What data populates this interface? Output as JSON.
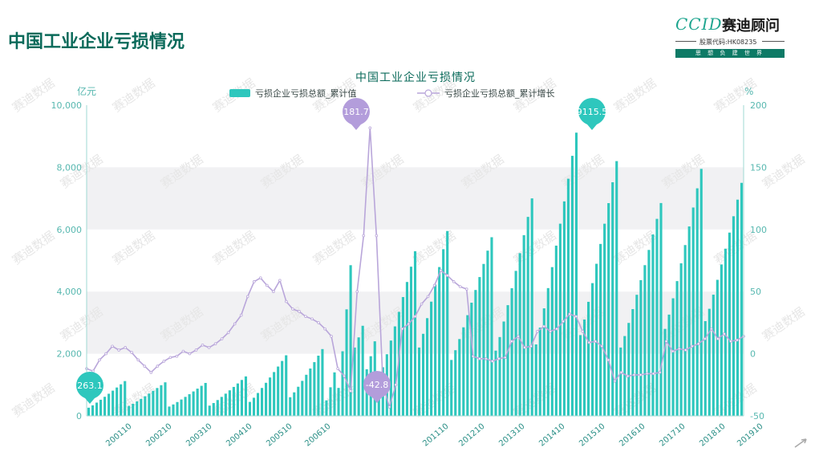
{
  "page": {
    "title": "中国工业企业亏损情况"
  },
  "logo": {
    "mark": "CCID",
    "name": "赛迪顾问",
    "stock_code": "股票代码:HK08235",
    "slogan": "思 想 负 建 世 界"
  },
  "watermark": "赛迪数据",
  "colors": {
    "bar": "#2ec7bd",
    "line": "#b9a6da",
    "marker_teal": "#2ec7bd",
    "marker_purple": "#b39ddb",
    "axis_text": "#58b8b0",
    "title": "#0a6a5a"
  },
  "chart_data": {
    "type": "bar+line",
    "title": "中国工业企业亏损情况",
    "y_left_label": "亿元",
    "y_right_label": "%",
    "y_left_ticks": [
      "0",
      "2,000",
      "4,000",
      "6,000",
      "8,000",
      "10,000"
    ],
    "y_right_ticks": [
      "-50",
      "0",
      "50",
      "100",
      "150",
      "200"
    ],
    "y_left_range": [
      0,
      10000
    ],
    "y_right_range": [
      -50,
      200
    ],
    "x_tick_labels": [
      "200110",
      "200210",
      "200310",
      "200410",
      "200510",
      "200610",
      "201110",
      "201210",
      "201310",
      "201410",
      "201510",
      "201610",
      "201710",
      "201810",
      "201910"
    ],
    "legend": [
      {
        "name": "亏损企业亏损总额_累计值",
        "kind": "bar"
      },
      {
        "name": "亏损企业亏损总额_累计增长",
        "kind": "line"
      }
    ],
    "annotations": [
      {
        "label": "263.1",
        "series": "bar",
        "kind": "min"
      },
      {
        "label": "9115.5",
        "series": "bar",
        "kind": "max"
      },
      {
        "label": "181.7",
        "series": "line",
        "kind": "max"
      },
      {
        "label": "-42.8",
        "series": "line",
        "kind": "min"
      }
    ],
    "bar_years": [
      {
        "year": 2001,
        "months": 10,
        "start": 263,
        "end": 1120
      },
      {
        "year": 2002,
        "months": 10,
        "start": 320,
        "end": 1080
      },
      {
        "year": 2003,
        "months": 10,
        "start": 300,
        "end": 1060
      },
      {
        "year": 2004,
        "months": 10,
        "start": 330,
        "end": 1270
      },
      {
        "year": 2005,
        "months": 10,
        "start": 450,
        "end": 1950
      },
      {
        "year": 2006,
        "months": 9,
        "start": 600,
        "end": 2150
      },
      {
        "year": 2007,
        "months": 3,
        "start": 500,
        "end": 1400
      },
      {
        "year": 2008,
        "months": 4,
        "start": 900,
        "end": 4850
      },
      {
        "year": 2009,
        "months": 3,
        "start": 2200,
        "end": 2900
      },
      {
        "year": 2010,
        "months": 3,
        "start": 1500,
        "end": 2400
      },
      {
        "year": 2011,
        "months": 10,
        "start": 1200,
        "end": 5300
      },
      {
        "year": 2012,
        "months": 8,
        "start": 2200,
        "end": 5950
      },
      {
        "year": 2013,
        "months": 11,
        "start": 1800,
        "end": 5750
      },
      {
        "year": 2014,
        "months": 10,
        "start": 2100,
        "end": 7000
      },
      {
        "year": 2015,
        "months": 11,
        "start": 2300,
        "end": 9115.5
      },
      {
        "year": 2016,
        "months": 10,
        "start": 2600,
        "end": 8200
      },
      {
        "year": 2017,
        "months": 11,
        "start": 2200,
        "end": 6850
      },
      {
        "year": 2018,
        "months": 10,
        "start": 2800,
        "end": 7950
      },
      {
        "year": 2019,
        "months": 10,
        "start": 3050,
        "end": 7500
      }
    ],
    "line_points": [
      [
        0,
        -12
      ],
      [
        4,
        -14
      ],
      [
        8,
        -5
      ],
      [
        12,
        0
      ],
      [
        16,
        6
      ],
      [
        20,
        3
      ],
      [
        24,
        5
      ],
      [
        28,
        1
      ],
      [
        32,
        -5
      ],
      [
        36,
        -10
      ],
      [
        40,
        -15
      ],
      [
        44,
        -10
      ],
      [
        48,
        -6
      ],
      [
        52,
        -3
      ],
      [
        56,
        -2
      ],
      [
        60,
        2
      ],
      [
        64,
        0
      ],
      [
        68,
        3
      ],
      [
        72,
        7
      ],
      [
        76,
        5
      ],
      [
        80,
        8
      ],
      [
        84,
        12
      ],
      [
        88,
        17
      ],
      [
        92,
        24
      ],
      [
        96,
        31
      ],
      [
        100,
        46
      ],
      [
        104,
        58
      ],
      [
        108,
        61
      ],
      [
        112,
        55
      ],
      [
        116,
        50
      ],
      [
        120,
        59
      ],
      [
        124,
        42
      ],
      [
        128,
        36
      ],
      [
        132,
        34
      ],
      [
        136,
        30
      ],
      [
        140,
        28
      ],
      [
        144,
        25
      ],
      [
        148,
        20
      ],
      [
        152,
        14
      ],
      [
        156,
        -12
      ],
      [
        160,
        -18
      ],
      [
        164,
        -30
      ],
      [
        168,
        50
      ],
      [
        172,
        95
      ],
      [
        176,
        181.7
      ],
      [
        180,
        95
      ],
      [
        184,
        -25
      ],
      [
        188,
        -42.8
      ],
      [
        192,
        -25
      ],
      [
        196,
        20
      ],
      [
        200,
        24
      ],
      [
        204,
        30
      ],
      [
        208,
        40
      ],
      [
        212,
        46
      ],
      [
        216,
        55
      ],
      [
        220,
        67
      ],
      [
        224,
        63
      ],
      [
        228,
        58
      ],
      [
        232,
        54
      ],
      [
        236,
        52
      ],
      [
        240,
        -2
      ],
      [
        244,
        -4
      ],
      [
        248,
        -4
      ],
      [
        252,
        -6
      ],
      [
        256,
        -4
      ],
      [
        260,
        -3
      ],
      [
        264,
        10
      ],
      [
        268,
        14
      ],
      [
        272,
        5
      ],
      [
        276,
        6
      ],
      [
        280,
        18
      ],
      [
        284,
        22
      ],
      [
        288,
        18
      ],
      [
        292,
        20
      ],
      [
        296,
        26
      ],
      [
        300,
        32
      ],
      [
        304,
        30
      ],
      [
        308,
        18
      ],
      [
        312,
        9
      ],
      [
        316,
        10
      ],
      [
        320,
        6
      ],
      [
        324,
        -5
      ],
      [
        328,
        -22
      ],
      [
        332,
        -15
      ],
      [
        336,
        -18
      ],
      [
        340,
        -17
      ],
      [
        344,
        -17
      ],
      [
        348,
        -16
      ],
      [
        352,
        -16
      ],
      [
        356,
        -15
      ],
      [
        360,
        10
      ],
      [
        364,
        2
      ],
      [
        368,
        4
      ],
      [
        372,
        3
      ],
      [
        376,
        6
      ],
      [
        380,
        8
      ],
      [
        384,
        12
      ],
      [
        388,
        20
      ],
      [
        392,
        12
      ],
      [
        396,
        16
      ],
      [
        400,
        10
      ],
      [
        404,
        11
      ],
      [
        408,
        14
      ]
    ]
  }
}
